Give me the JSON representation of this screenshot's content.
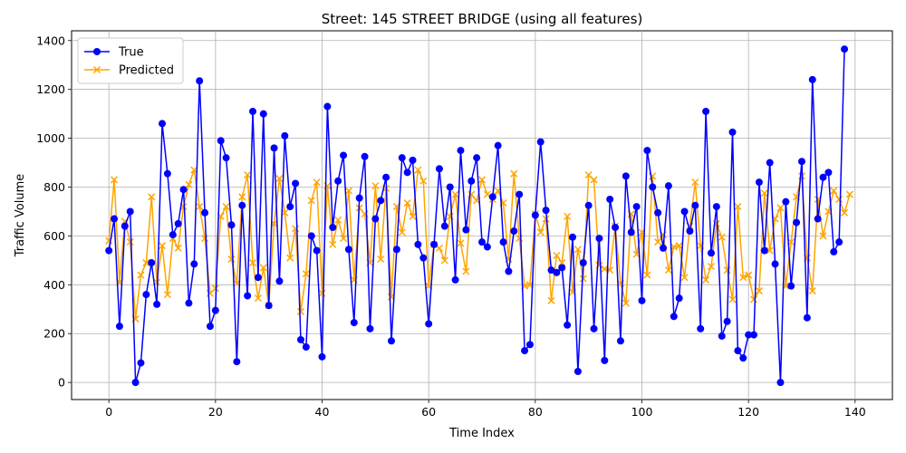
{
  "chart_data": {
    "type": "line",
    "title": "Street: 145 STREET BRIDGE (using all features)",
    "xlabel": "Time Index",
    "ylabel": "Traffic Volume",
    "xlim": [
      -7,
      147
    ],
    "ylim": [
      -70,
      1440
    ],
    "x_ticks": [
      0,
      20,
      40,
      60,
      80,
      100,
      120,
      140
    ],
    "y_ticks": [
      0,
      200,
      400,
      600,
      800,
      1000,
      1200,
      1400
    ],
    "grid": true,
    "legend_position": "upper-left",
    "series": [
      {
        "name": "True",
        "color": "#0000ff",
        "marker": "circle",
        "values": [
          540,
          670,
          230,
          640,
          700,
          0,
          80,
          360,
          490,
          320,
          1060,
          855,
          605,
          650,
          790,
          325,
          485,
          1235,
          695,
          230,
          295,
          990,
          920,
          645,
          85,
          725,
          355,
          1110,
          430,
          1100,
          315,
          960,
          415,
          1010,
          720,
          815,
          175,
          145,
          600,
          540,
          105,
          1130,
          635,
          825,
          930,
          545,
          245,
          755,
          925,
          220,
          670,
          745,
          840,
          170,
          545,
          920,
          860,
          910,
          565,
          510,
          240,
          565,
          875,
          640,
          800,
          420,
          950,
          625,
          825,
          920,
          575,
          555,
          760,
          970,
          575,
          455,
          620,
          770,
          130,
          155,
          685,
          985,
          705,
          460,
          450,
          470,
          235,
          595,
          45,
          490,
          725,
          220,
          590,
          90,
          750,
          635,
          170,
          845,
          615,
          720,
          335,
          950,
          800,
          695,
          550,
          805,
          270,
          345,
          700,
          620,
          725,
          220,
          1110,
          530,
          720,
          190,
          250,
          1025,
          130,
          100,
          195,
          195,
          820,
          540,
          900,
          485,
          0,
          740,
          395,
          655,
          905,
          265,
          1240,
          670,
          840,
          860,
          535,
          575,
          1365
        ]
      },
      {
        "name": "Predicted",
        "color": "#ffa500",
        "marker": "x",
        "values": [
          580,
          830,
          410,
          660,
          575,
          260,
          440,
          490,
          760,
          410,
          560,
          360,
          590,
          550,
          720,
          810,
          870,
          720,
          590,
          365,
          385,
          680,
          720,
          505,
          405,
          760,
          850,
          490,
          345,
          470,
          315,
          650,
          835,
          695,
          510,
          630,
          290,
          445,
          745,
          820,
          365,
          805,
          565,
          665,
          590,
          785,
          420,
          715,
          690,
          490,
          805,
          505,
          795,
          350,
          720,
          615,
          735,
          680,
          870,
          825,
          395,
          565,
          550,
          500,
          680,
          770,
          570,
          455,
          770,
          745,
          830,
          770,
          750,
          785,
          735,
          505,
          855,
          590,
          395,
          400,
          690,
          615,
          670,
          335,
          520,
          490,
          680,
          370,
          545,
          425,
          850,
          830,
          480,
          465,
          460,
          640,
          405,
          325,
          690,
          525,
          615,
          440,
          845,
          575,
          605,
          460,
          555,
          560,
          430,
          640,
          820,
          560,
          420,
          475,
          650,
          595,
          460,
          340,
          720,
          430,
          440,
          340,
          375,
          775,
          540,
          670,
          715,
          395,
          575,
          760,
          845,
          510,
          375,
          750,
          600,
          700,
          785,
          750,
          695,
          770
        ]
      }
    ]
  }
}
